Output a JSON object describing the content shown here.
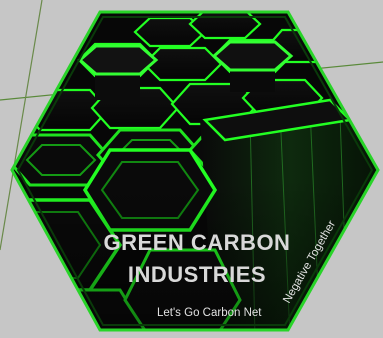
{
  "logo": {
    "name_line1": "GREEN CARBON",
    "name_line2": "INDUSTRIES",
    "tagline_part1": "Let's Go Carbon Net",
    "tagline_part2": "Negative Together"
  },
  "colors": {
    "background": "#c6c6c6",
    "accent_green": "#22ff22",
    "dark_green": "#0a5a0a",
    "cell_black": "#0b0b0b",
    "text": "#d9d9d9"
  }
}
